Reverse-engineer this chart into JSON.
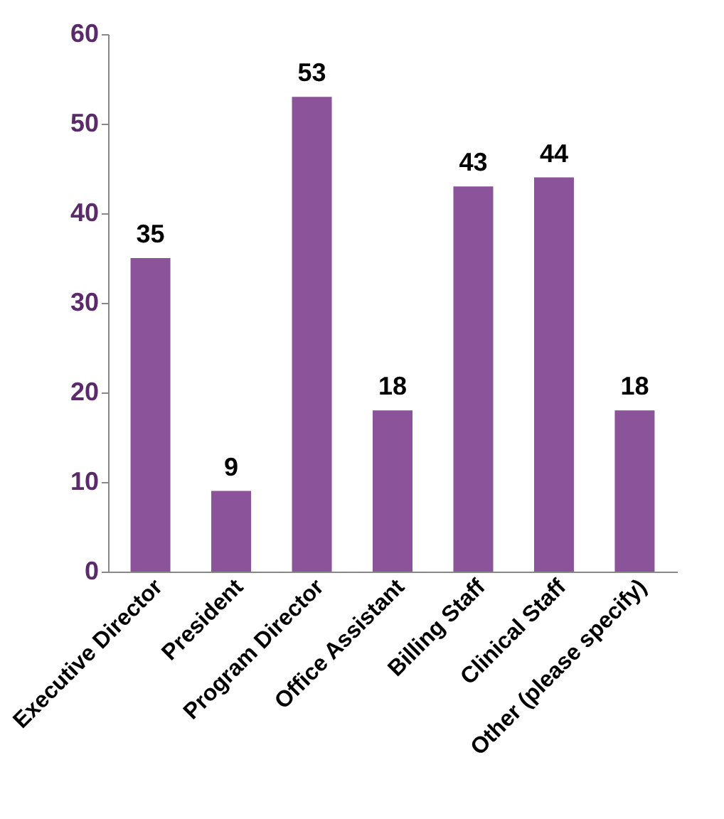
{
  "chart_data": {
    "type": "bar",
    "categories": [
      "Executive Director",
      "President",
      "Program Director",
      "Office Assistant",
      "Billing Staff",
      "Clinical Staff",
      "Other (please specify)"
    ],
    "values": [
      35,
      9,
      53,
      18,
      43,
      44,
      18
    ],
    "color": "#8b539a",
    "ylim": [
      0,
      60
    ],
    "yticks": [
      0,
      10,
      20,
      30,
      40,
      50,
      60
    ],
    "grid": false,
    "data_labels": true
  }
}
